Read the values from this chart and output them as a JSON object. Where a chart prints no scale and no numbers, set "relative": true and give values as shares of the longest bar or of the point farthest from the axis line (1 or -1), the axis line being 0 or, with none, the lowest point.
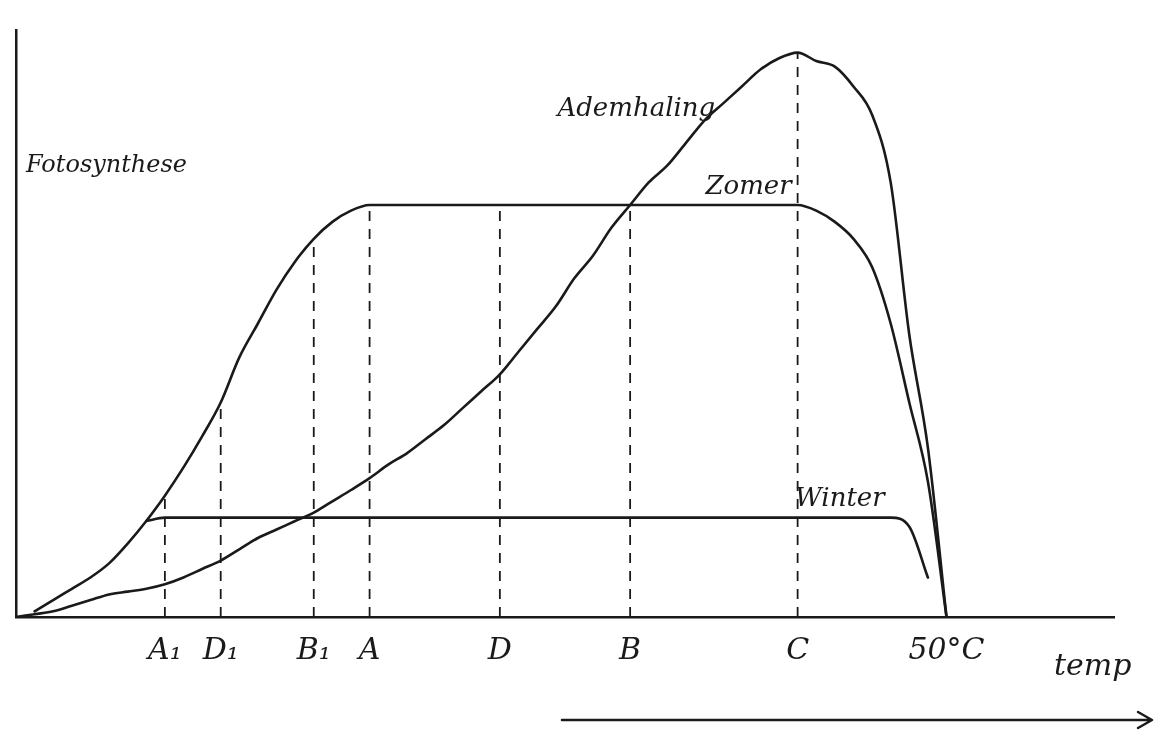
{
  "chart_data": {
    "type": "line",
    "relative": true,
    "xlabel": "temp",
    "annotations": [
      "Fotosynthese"
    ],
    "marker": "none",
    "line_style": "solid",
    "categories": [
      null,
      null,
      null,
      null,
      null,
      null,
      null,
      null,
      "A₁",
      null,
      null,
      "D₁",
      null,
      null,
      null,
      null,
      "B₁",
      null,
      null,
      "A",
      null,
      null,
      null,
      null,
      null,
      null,
      "D",
      null,
      null,
      null,
      null,
      null,
      null,
      "B",
      null,
      null,
      null,
      null,
      null,
      null,
      null,
      null,
      "C",
      null,
      null,
      null,
      null,
      null,
      null,
      null,
      "50°C",
      null,
      null,
      null,
      null,
      null,
      null,
      null,
      null,
      null
    ],
    "series": [
      {
        "name": "Ademhaling",
        "color": "#1a1a1a",
        "values": [
          0,
          0.005,
          0.01,
          0.02,
          0.03,
          0.04,
          0.045,
          0.05,
          0.058,
          0.07,
          0.085,
          0.1,
          0.12,
          0.14,
          0.155,
          0.17,
          0.185,
          0.205,
          0.225,
          0.246,
          0.27,
          0.29,
          0.315,
          0.34,
          0.37,
          0.4,
          0.43,
          0.47,
          0.51,
          0.55,
          0.6,
          0.64,
          0.69,
          0.73,
          0.77,
          0.8,
          0.84,
          0.88,
          0.91,
          0.94,
          0.97,
          0.99,
          1,
          0.985,
          0.975,
          0.94,
          0.89,
          0.77,
          0.5,
          0.3,
          0,
          null,
          null,
          null,
          null,
          null,
          null,
          null,
          null,
          null
        ]
      },
      {
        "name": "Zomer",
        "color": "#1a1a1a",
        "values": [
          null,
          0.01,
          0.03,
          0.05,
          0.07,
          0.095,
          0.13,
          0.17,
          0.215,
          0.265,
          0.32,
          0.38,
          0.46,
          0.52,
          0.58,
          0.63,
          0.67,
          0.7,
          0.72,
          0.73,
          0.73,
          0.73,
          0.73,
          0.73,
          0.73,
          0.73,
          0.73,
          0.73,
          0.73,
          0.73,
          0.73,
          0.73,
          0.73,
          0.73,
          0.73,
          0.73,
          0.73,
          0.73,
          0.73,
          0.73,
          0.73,
          0.73,
          0.73,
          0.72,
          0.7,
          0.67,
          0.62,
          0.52,
          0.38,
          0.24,
          0,
          null,
          null,
          null,
          null,
          null,
          null,
          null,
          null,
          null
        ]
      },
      {
        "name": "Winter",
        "color": "#1a1a1a",
        "values": [
          null,
          null,
          null,
          null,
          null,
          null,
          null,
          0.17,
          0.176,
          0.176,
          0.176,
          0.176,
          0.176,
          0.176,
          0.176,
          0.176,
          0.176,
          0.176,
          0.176,
          0.176,
          0.176,
          0.176,
          0.176,
          0.176,
          0.176,
          0.176,
          0.176,
          0.176,
          0.176,
          0.176,
          0.176,
          0.176,
          0.176,
          0.176,
          0.176,
          0.176,
          0.176,
          0.176,
          0.176,
          0.176,
          0.176,
          0.176,
          0.176,
          0.176,
          0.176,
          0.176,
          0.176,
          0.176,
          0.16,
          0.07,
          null,
          null,
          null,
          null,
          null,
          null,
          null,
          null,
          null,
          null
        ]
      }
    ],
    "ref_lines": [
      {
        "axis": "x",
        "value": "A₁",
        "line_style": "dashed"
      },
      {
        "axis": "x",
        "value": "D₁",
        "line_style": "dashed"
      },
      {
        "axis": "x",
        "value": "B₁",
        "line_style": "dashed"
      },
      {
        "axis": "x",
        "value": "A",
        "line_style": "dashed"
      },
      {
        "axis": "x",
        "value": "D",
        "line_style": "dashed"
      },
      {
        "axis": "x",
        "value": "B",
        "line_style": "dashed"
      },
      {
        "axis": "x",
        "value": "C",
        "line_style": "dashed"
      }
    ]
  }
}
